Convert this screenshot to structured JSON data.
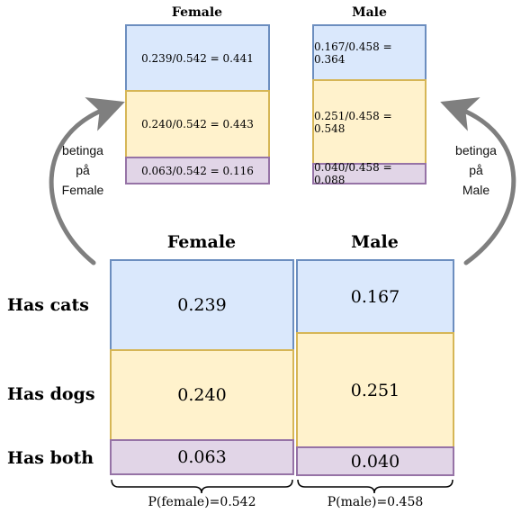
{
  "top": {
    "female": {
      "title": "Female",
      "cats": "0.239/0.542 = 0.441",
      "dogs": "0.240/0.542 = 0.443",
      "both": "0.063/0.542 = 0.116"
    },
    "male": {
      "title": "Male",
      "cats": "0.167/0.458 = 0.364",
      "dogs": "0.251/0.458 = 0.548",
      "both": "0.040/0.458 = 0.088"
    }
  },
  "notes": {
    "left": [
      "betinga",
      "på",
      "Female"
    ],
    "right": [
      "betinga",
      "på",
      "Male"
    ]
  },
  "bottom": {
    "female_title": "Female",
    "male_title": "Male",
    "row_labels": {
      "cats": "Has cats",
      "dogs": "Has dogs",
      "both": "Has both"
    },
    "female": {
      "cats": "0.239",
      "dogs": "0.240",
      "both": "0.063"
    },
    "male": {
      "cats": "0.167",
      "dogs": "0.251",
      "both": "0.040"
    },
    "brace_female": "P(female)=0.542",
    "brace_male": "P(male)=0.458"
  },
  "colors": {
    "cats_fill": "#dae8fc",
    "cats_stroke": "#6c8ebf",
    "dogs_fill": "#fff2cc",
    "dogs_stroke": "#d6b656",
    "both_fill": "#e1d5e7",
    "both_stroke": "#9673a6",
    "arrow": "#7f7f7f"
  }
}
